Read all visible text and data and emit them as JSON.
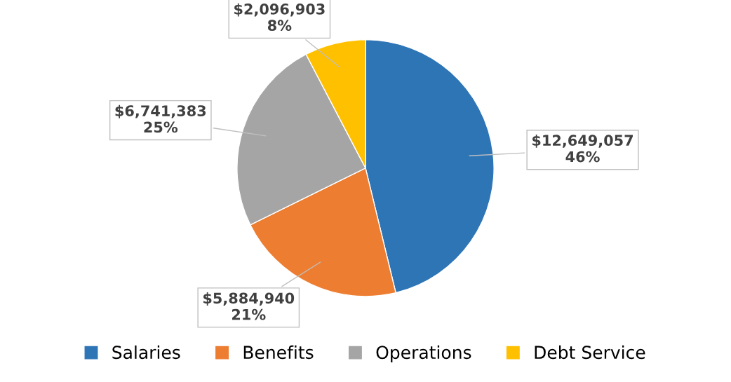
{
  "chart_data": {
    "type": "pie",
    "categories": [
      "Salaries",
      "Benefits",
      "Operations",
      "Debt Service"
    ],
    "values": [
      12649057,
      5884940,
      6741383,
      2096903
    ],
    "colors": [
      "#2e75b6",
      "#ed7d31",
      "#a5a5a5",
      "#ffc000"
    ],
    "value_labels": [
      "$12,649,057\n46%",
      "$5,884,940\n21%",
      "$6,741,383\n25%",
      "$2,096,903\n8%"
    ],
    "legend": "bottom"
  }
}
